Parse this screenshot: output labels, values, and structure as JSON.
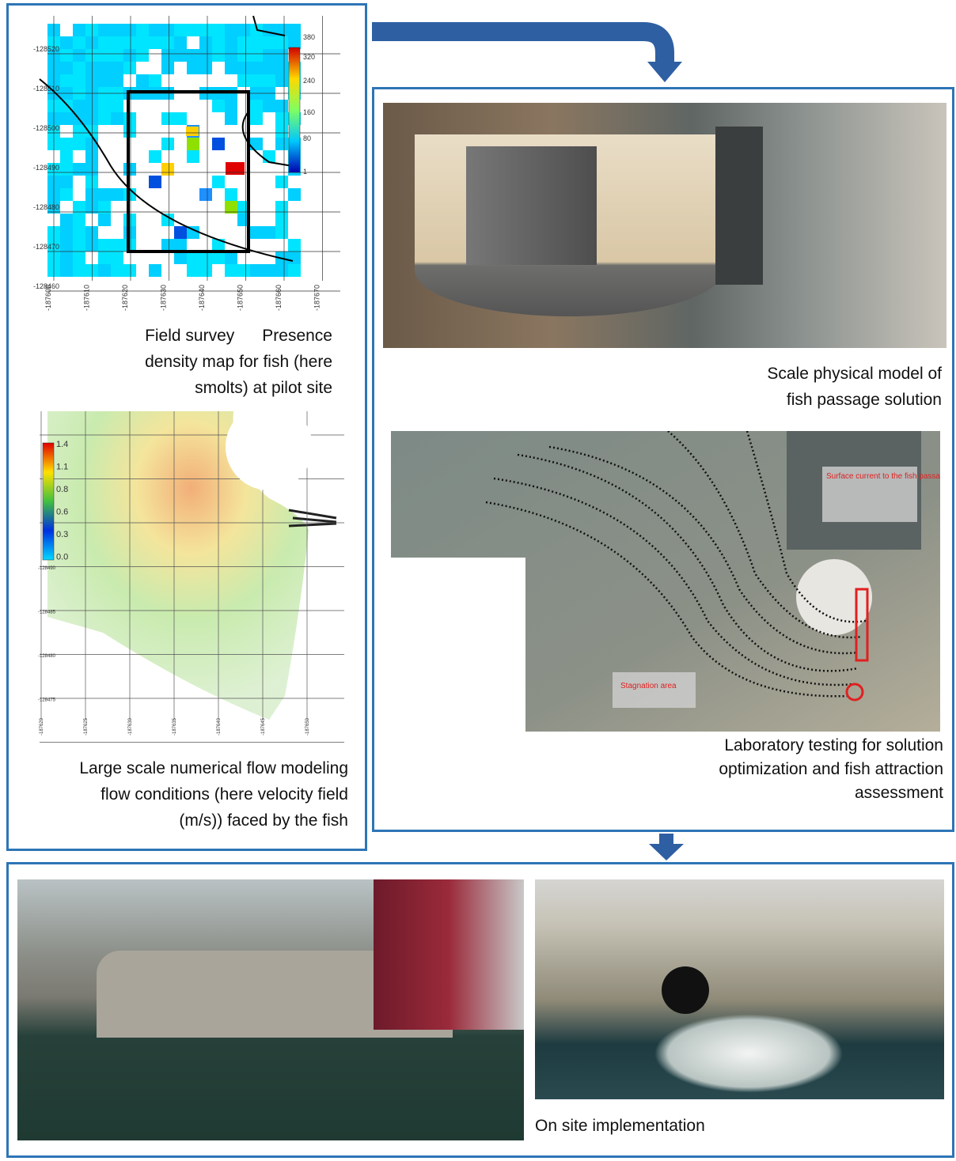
{
  "density_map": {
    "y_labels": [
      "-128520",
      "-128510",
      "-128500",
      "-128490",
      "-128480",
      "-128470",
      "-128460"
    ],
    "x_labels": [
      "-187600",
      "-187610",
      "-187620",
      "-187630",
      "-187640",
      "-187650",
      "-187660",
      "-187670"
    ],
    "colorbar_labels": [
      "380",
      "320",
      "240",
      "160",
      "80",
      "1"
    ],
    "caption": [
      "Field survey      Presence",
      "density map for fish (here",
      "smolts) at pilot site"
    ]
  },
  "flow_map": {
    "colorbar_labels": [
      "1.4",
      "1.1",
      "0.8",
      "0.6",
      "0.3",
      "0.0"
    ],
    "y_labels": [
      "-128490",
      "-128485",
      "-128480",
      "-128475"
    ],
    "x_labels": [
      "-187620",
      "-187625",
      "-187630",
      "-187635",
      "-187640",
      "-187645",
      "-187650"
    ],
    "caption": [
      "Large scale numerical flow modeling",
      "flow conditions (here velocity field",
      "(m/s)) faced by the fish"
    ]
  },
  "physical_model": {
    "caption": [
      "Scale physical model of",
      "fish passage solution"
    ]
  },
  "laboratory": {
    "annotations": [
      "Surface current to the fish passage in front of HPP mask wall",
      "Stagnation area"
    ],
    "caption": [
      "Laboratory testing for solution",
      "optimization and fish attraction",
      "assessment"
    ]
  },
  "on_site": {
    "caption": "On site implementation"
  }
}
